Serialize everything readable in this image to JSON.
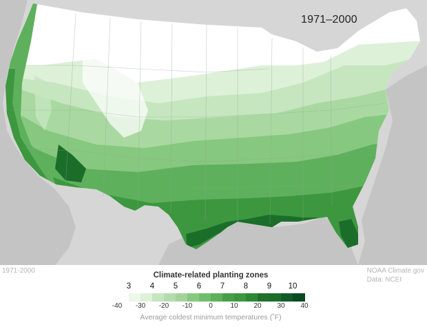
{
  "map": {
    "period_label": "1971–2000",
    "bottom_left_label": "1971-2000",
    "credit_lines": [
      "NOAA Climate.gov",
      "Data: NCEI"
    ],
    "colors": {
      "background_land": "#d6d6d6",
      "water": "#c4c4c4",
      "state_lines": "#8fa58f",
      "zone_3": "#ffffff",
      "zone_4": "#ddf1d9",
      "zone_5": "#c6e6bf",
      "zone_6": "#a9d9a0",
      "zone_7": "#86c87f",
      "zone_8": "#5eb05d",
      "zone_9": "#3c973f",
      "zone_10": "#1b6e2a"
    }
  },
  "legend": {
    "title": "Climate-related planting zones",
    "zones": [
      "3",
      "4",
      "5",
      "6",
      "7",
      "8",
      "9",
      "10"
    ],
    "ticks": [
      "-40",
      "-30",
      "-20",
      "-10",
      "0",
      "10",
      "20",
      "30",
      "40"
    ],
    "axis_label": "Average coldest minimum temperatures (˚F)",
    "swatches": [
      "#ffffff",
      "#edf7ea",
      "#ddf1d9",
      "#c6e6bf",
      "#b4dcad",
      "#a3d39a",
      "#86c87f",
      "#70bd6d",
      "#5eb05d",
      "#47a049",
      "#3c973f",
      "#2f8835",
      "#236f2c",
      "#1b6e2a",
      "#12592a",
      "#0c4a24"
    ]
  }
}
